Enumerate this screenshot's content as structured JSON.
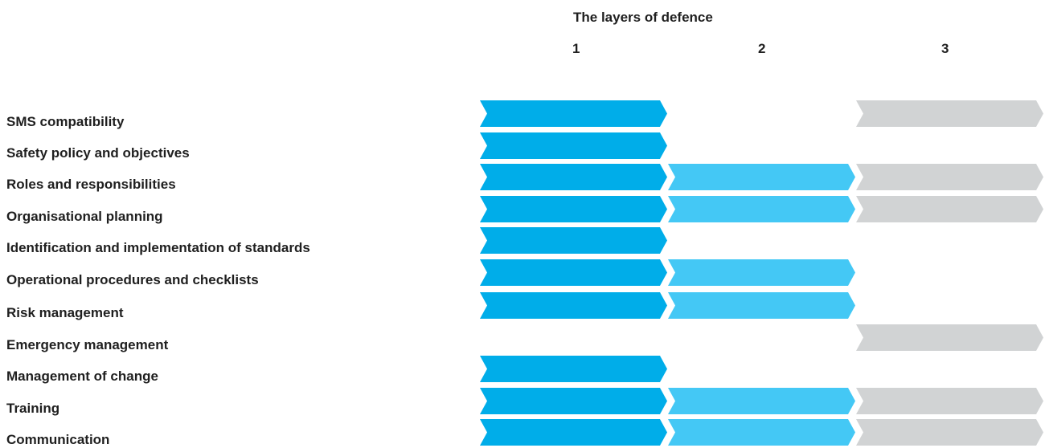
{
  "title": "The layers of defence",
  "layers": [
    "1",
    "2",
    "3"
  ],
  "colors": {
    "layer1": "#00ade9",
    "layer2": "#44c8f5",
    "layer3": "#d1d3d4"
  },
  "rows": [
    {
      "label": "SMS compatibility",
      "layers": [
        true,
        false,
        true
      ]
    },
    {
      "label": "Safety policy and objectives",
      "layers": [
        true,
        false,
        false
      ]
    },
    {
      "label": "Roles and responsibilities",
      "layers": [
        true,
        true,
        true
      ]
    },
    {
      "label": "Organisational planning",
      "layers": [
        true,
        true,
        true
      ]
    },
    {
      "label": "Identification and implementation of standards",
      "layers": [
        true,
        false,
        false
      ]
    },
    {
      "label": "Operational procedures and checklists",
      "layers": [
        true,
        true,
        false
      ]
    },
    {
      "label": "Risk management",
      "layers": [
        true,
        true,
        false
      ]
    },
    {
      "label": "Emergency management",
      "layers": [
        false,
        false,
        true
      ]
    },
    {
      "label": "Management of change",
      "layers": [
        true,
        false,
        false
      ]
    },
    {
      "label": "Training",
      "layers": [
        true,
        true,
        true
      ]
    },
    {
      "label": "Communication",
      "layers": [
        true,
        true,
        true
      ]
    }
  ]
}
